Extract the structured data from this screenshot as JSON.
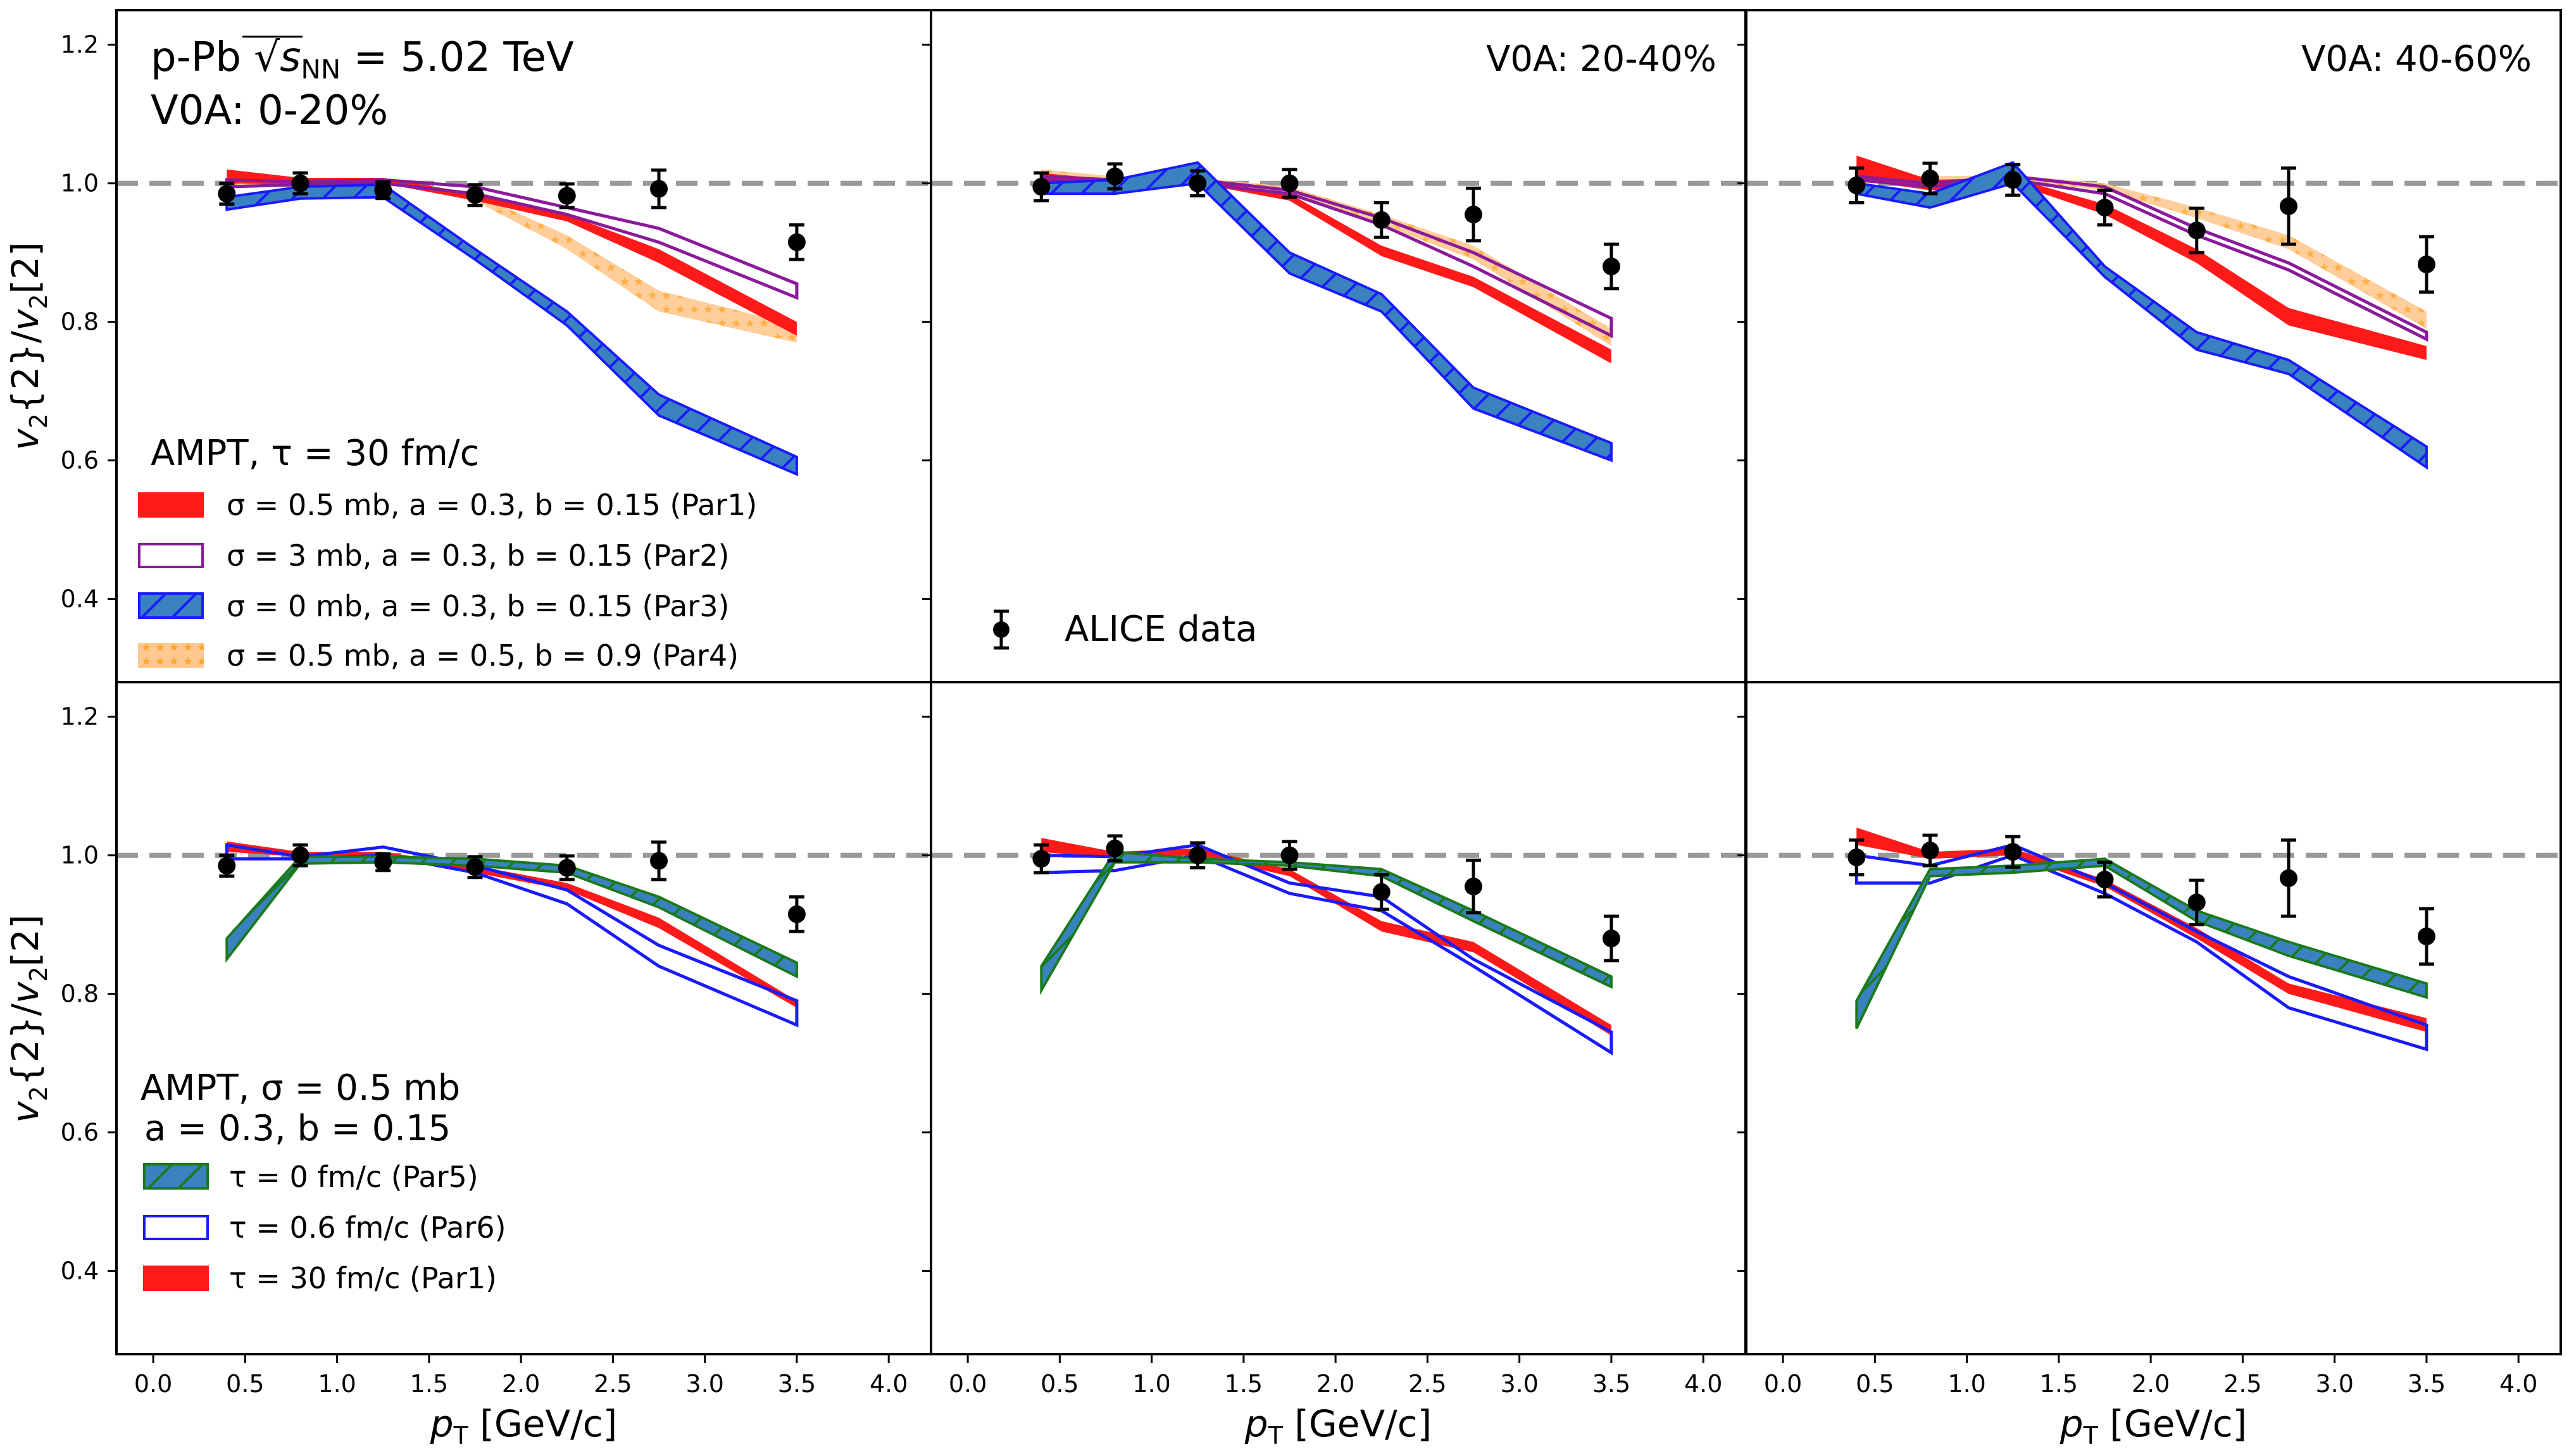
{
  "chart_data": {
    "type": "area",
    "figure_layout": "2 rows x 3 columns, shared axes",
    "xlabel": "p_T [GeV/c]",
    "ylabel": "v2{2}/v2[2]",
    "xlim": [
      -0.2,
      4.23
    ],
    "ylim": [
      0.28,
      1.25
    ],
    "xticks": [
      "0.0",
      "0.5",
      "1.0",
      "1.5",
      "2.0",
      "2.5",
      "3.0",
      "3.5",
      "4.0"
    ],
    "xtick_values": [
      0.0,
      0.5,
      1.0,
      1.5,
      2.0,
      2.5,
      3.0,
      3.5,
      4.0
    ],
    "yticks": [
      "0.4",
      "0.6",
      "0.8",
      "1.0",
      "1.2"
    ],
    "ytick_values": [
      0.4,
      0.6,
      0.8,
      1.0,
      1.2
    ],
    "reference_line": {
      "y": 1.0,
      "style": "dashed",
      "color": "#999999"
    },
    "grid": false,
    "x": [
      0.4,
      0.8,
      1.25,
      1.75,
      2.25,
      2.75,
      3.5
    ],
    "annotations": {
      "system_title": "p-Pb √s_NN = 5.02 TeV",
      "system_prefix": "p-Pb ",
      "system_s": "s",
      "system_sub": "NN",
      "system_suffix": " = 5.02 TeV",
      "centrality": [
        "V0A: 0-20%",
        "V0A: 20-40%",
        "V0A: 40-60%"
      ],
      "top_legend_title": "AMPT, τ = 30 fm/c",
      "bottom_legend_title_line1": "AMPT, σ = 0.5 mb",
      "bottom_legend_title_line2": "a = 0.3, b = 0.15",
      "data_legend": "ALICE data"
    },
    "series_styles": {
      "Par1": {
        "label": "σ = 0.5 mb, a = 0.3, b = 0.15 (Par1)",
        "bottom_label": "τ = 30 fm/c (Par1)",
        "fill": "#ff1a1a",
        "edge": "#ff1a1a",
        "hatch": "none"
      },
      "Par2": {
        "label": "σ = 3 mb, a = 0.3, b = 0.15 (Par2)",
        "fill": "none",
        "edge": "#8b1a9b",
        "hatch": "none"
      },
      "Par3": {
        "label": "σ = 0 mb, a = 0.3, b = 0.15 (Par3)",
        "fill": "#3a82bf",
        "edge": "#1a1aff",
        "hatch": "diagonal"
      },
      "Par4": {
        "label": "σ = 0.5 mb, a = 0.5, b = 0.9 (Par4)",
        "fill": "#ffb566",
        "edge": "#ffb566",
        "hatch": "stars"
      },
      "Par5": {
        "label": "τ = 0 fm/c (Par5)",
        "fill": "#3a82bf",
        "edge": "#1a7a1a",
        "hatch": "diagonal"
      },
      "Par6": {
        "label": "τ = 0.6 fm/c (Par6)",
        "fill": "none",
        "edge": "#1a1aff",
        "hatch": "none"
      }
    },
    "panels": [
      {
        "row": 0,
        "col": 0,
        "centrality": "V0A: 0-20%",
        "data": {
          "y": [
            0.985,
            1.0,
            0.99,
            0.983,
            0.982,
            0.992,
            0.915
          ],
          "err": [
            0.015,
            0.015,
            0.012,
            0.015,
            0.017,
            0.027,
            0.025
          ]
        },
        "bands": [
          {
            "id": "Par4",
            "lo": [
              0.995,
              0.998,
              1.0,
              0.975,
              0.905,
              0.815,
              0.77
            ],
            "hi": [
              1.01,
              1.008,
              1.008,
              0.985,
              0.925,
              0.845,
              0.795
            ]
          },
          {
            "id": "Par1",
            "lo": [
              1.0,
              0.998,
              1.0,
              0.975,
              0.945,
              0.885,
              0.78
            ],
            "hi": [
              1.02,
              1.008,
              1.008,
              0.985,
              0.955,
              0.905,
              0.8
            ]
          },
          {
            "id": "Par2",
            "lo": [
              0.995,
              0.998,
              1.0,
              0.985,
              0.955,
              0.915,
              0.835
            ],
            "hi": [
              1.005,
              1.002,
              1.005,
              0.995,
              0.965,
              0.935,
              0.855
            ]
          },
          {
            "id": "Par3",
            "lo": [
              0.962,
              0.978,
              0.98,
              0.89,
              0.795,
              0.665,
              0.58
            ],
            "hi": [
              0.98,
              0.995,
              0.998,
              0.905,
              0.815,
              0.695,
              0.605
            ]
          }
        ]
      },
      {
        "row": 0,
        "col": 1,
        "centrality": "V0A: 20-40%",
        "data": {
          "y": [
            0.995,
            1.01,
            1.0,
            1.0,
            0.947,
            0.955,
            0.88
          ],
          "err": [
            0.02,
            0.018,
            0.018,
            0.02,
            0.025,
            0.038,
            0.032
          ]
        },
        "bands": [
          {
            "id": "Par4",
            "lo": [
              1.0,
              1.0,
              1.0,
              0.985,
              0.94,
              0.89,
              0.765
            ],
            "hi": [
              1.02,
              1.01,
              1.008,
              0.995,
              0.955,
              0.91,
              0.79
            ]
          },
          {
            "id": "Par1",
            "lo": [
              1.005,
              1.0,
              1.0,
              0.975,
              0.895,
              0.85,
              0.74
            ],
            "hi": [
              1.015,
              1.005,
              1.005,
              0.985,
              0.91,
              0.865,
              0.76
            ]
          },
          {
            "id": "Par2",
            "lo": [
              1.005,
              1.0,
              1.0,
              0.985,
              0.94,
              0.88,
              0.78
            ],
            "hi": [
              1.01,
              1.005,
              1.005,
              0.99,
              0.95,
              0.9,
              0.805
            ]
          },
          {
            "id": "Par3",
            "lo": [
              0.985,
              0.985,
              1.0,
              0.87,
              0.815,
              0.675,
              0.6
            ],
            "hi": [
              1.0,
              1.005,
              1.03,
              0.9,
              0.84,
              0.705,
              0.625
            ]
          }
        ]
      },
      {
        "row": 0,
        "col": 2,
        "centrality": "V0A: 40-60%",
        "data": {
          "y": [
            0.997,
            1.007,
            1.005,
            0.965,
            0.932,
            0.967,
            0.883
          ],
          "err": [
            0.025,
            0.022,
            0.022,
            0.025,
            0.032,
            0.055,
            0.04
          ]
        },
        "bands": [
          {
            "id": "Par4",
            "lo": [
              1.0,
              1.0,
              1.005,
              0.99,
              0.95,
              0.905,
              0.79
            ],
            "hi": [
              1.015,
              1.01,
              1.012,
              1.0,
              0.965,
              0.925,
              0.815
            ]
          },
          {
            "id": "Par1",
            "lo": [
              1.005,
              0.99,
              1.0,
              0.955,
              0.885,
              0.795,
              0.745
            ],
            "hi": [
              1.04,
              1.005,
              1.008,
              0.97,
              0.905,
              0.82,
              0.765
            ]
          },
          {
            "id": "Par2",
            "lo": [
              1.005,
              0.995,
              1.005,
              0.985,
              0.925,
              0.875,
              0.775
            ],
            "hi": [
              1.01,
              1.0,
              1.01,
              0.995,
              0.935,
              0.885,
              0.785
            ]
          },
          {
            "id": "Par3",
            "lo": [
              0.985,
              0.965,
              1.0,
              0.865,
              0.76,
              0.725,
              0.59
            ],
            "hi": [
              1.0,
              0.985,
              1.03,
              0.88,
              0.785,
              0.745,
              0.62
            ]
          }
        ]
      },
      {
        "row": 1,
        "col": 0,
        "centrality": "V0A: 0-20%",
        "data": {
          "y": [
            0.985,
            1.0,
            0.99,
            0.983,
            0.982,
            0.992,
            0.915
          ],
          "err": [
            0.015,
            0.015,
            0.012,
            0.015,
            0.017,
            0.027,
            0.025
          ]
        },
        "bands": [
          {
            "id": "Par1",
            "lo": [
              1.005,
              0.998,
              1.0,
              0.975,
              0.95,
              0.895,
              0.78
            ],
            "hi": [
              1.02,
              1.005,
              1.005,
              0.985,
              0.96,
              0.91,
              0.79
            ]
          },
          {
            "id": "Par6",
            "lo": [
              0.995,
              0.995,
              1.0,
              0.975,
              0.93,
              0.84,
              0.755
            ],
            "hi": [
              1.015,
              0.998,
              1.012,
              0.985,
              0.95,
              0.87,
              0.79
            ]
          },
          {
            "id": "Par5",
            "lo": [
              0.85,
              0.988,
              0.99,
              0.985,
              0.975,
              0.925,
              0.825
            ],
            "hi": [
              0.88,
              0.998,
              0.998,
              0.995,
              0.985,
              0.94,
              0.845
            ]
          }
        ]
      },
      {
        "row": 1,
        "col": 1,
        "centrality": "V0A: 20-40%",
        "data": {
          "y": [
            0.995,
            1.01,
            1.0,
            1.0,
            0.947,
            0.955,
            0.88
          ],
          "err": [
            0.02,
            0.018,
            0.018,
            0.02,
            0.025,
            0.038,
            0.032
          ]
        },
        "bands": [
          {
            "id": "Par1",
            "lo": [
              1.005,
              0.995,
              1.0,
              0.97,
              0.89,
              0.86,
              0.74
            ],
            "hi": [
              1.025,
              1.005,
              1.01,
              0.98,
              0.905,
              0.875,
              0.755
            ]
          },
          {
            "id": "Par6",
            "lo": [
              0.975,
              0.978,
              1.0,
              0.945,
              0.92,
              0.84,
              0.715
            ],
            "hi": [
              1.0,
              0.998,
              1.015,
              0.96,
              0.94,
              0.85,
              0.745
            ]
          },
          {
            "id": "Par5",
            "lo": [
              0.805,
              0.99,
              0.99,
              0.985,
              0.97,
              0.905,
              0.81
            ],
            "hi": [
              0.84,
              1.005,
              0.995,
              0.99,
              0.98,
              0.92,
              0.825
            ]
          }
        ]
      },
      {
        "row": 1,
        "col": 2,
        "centrality": "V0A: 40-60%",
        "data": {
          "y": [
            0.997,
            1.007,
            1.005,
            0.965,
            0.932,
            0.967,
            0.883
          ],
          "err": [
            0.025,
            0.022,
            0.022,
            0.025,
            0.032,
            0.055,
            0.04
          ]
        },
        "bands": [
          {
            "id": "Par1",
            "lo": [
              1.015,
              0.995,
              1.0,
              0.955,
              0.88,
              0.8,
              0.745
            ],
            "hi": [
              1.04,
              1.005,
              1.01,
              0.965,
              0.895,
              0.815,
              0.765
            ]
          },
          {
            "id": "Par6",
            "lo": [
              0.96,
              0.96,
              1.0,
              0.945,
              0.875,
              0.78,
              0.72
            ],
            "hi": [
              1.0,
              0.985,
              1.015,
              0.96,
              0.89,
              0.825,
              0.755
            ]
          },
          {
            "id": "Par5",
            "lo": [
              0.75,
              0.97,
              0.975,
              0.985,
              0.905,
              0.855,
              0.795
            ],
            "hi": [
              0.79,
              0.98,
              0.985,
              0.995,
              0.92,
              0.875,
              0.815
            ]
          }
        ]
      }
    ]
  }
}
